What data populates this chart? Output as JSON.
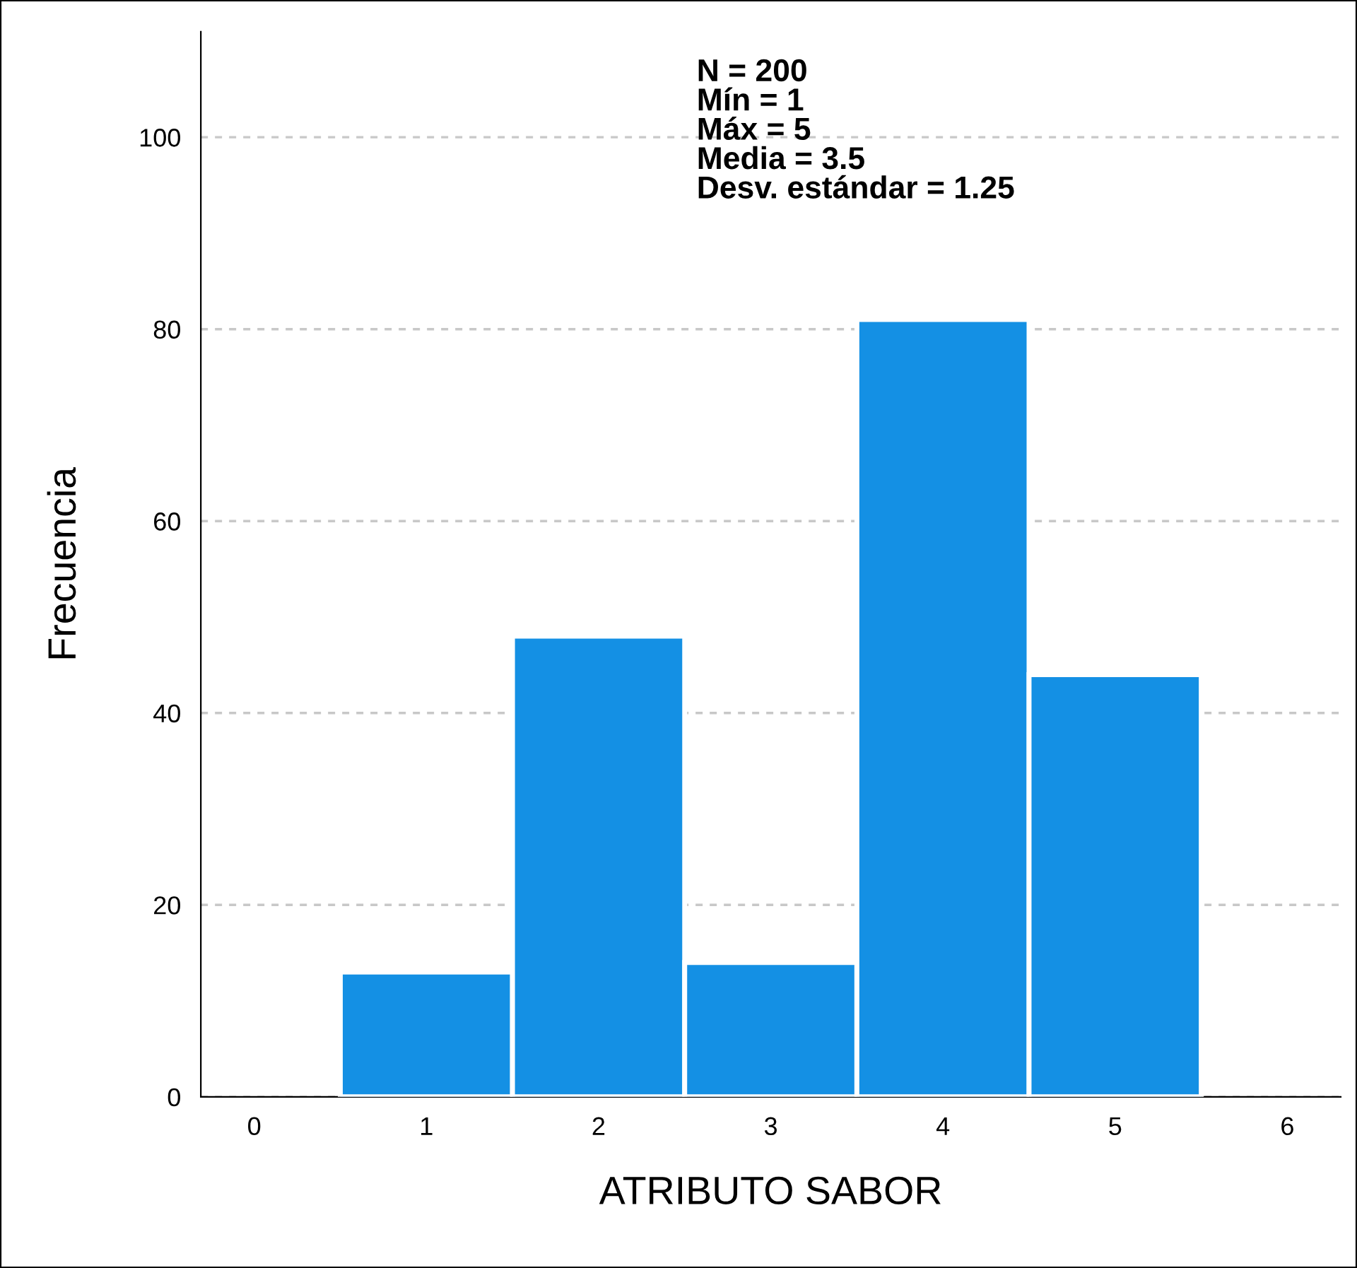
{
  "chart_data": {
    "type": "histogram",
    "xlabel": "ATRIBUTO SABOR",
    "ylabel": "Frecuencia",
    "bins": [
      0.5,
      1.5,
      2.5,
      3.5,
      4.5,
      5.5
    ],
    "values": [
      13,
      48,
      14,
      81,
      44
    ],
    "color": "#1490e4",
    "xlim": [
      -0.31,
      6.31
    ],
    "xticks": [
      0,
      1,
      2,
      3,
      4,
      5,
      6
    ],
    "ylim": [
      0,
      111
    ],
    "yticks": [
      0,
      20,
      40,
      60,
      80,
      100
    ],
    "grid": "y",
    "annotations": [
      "N = 200",
      "Mín = 1",
      "Máx = 5",
      "Media = 3.5",
      "Desv. estándar = 1.25"
    ]
  }
}
